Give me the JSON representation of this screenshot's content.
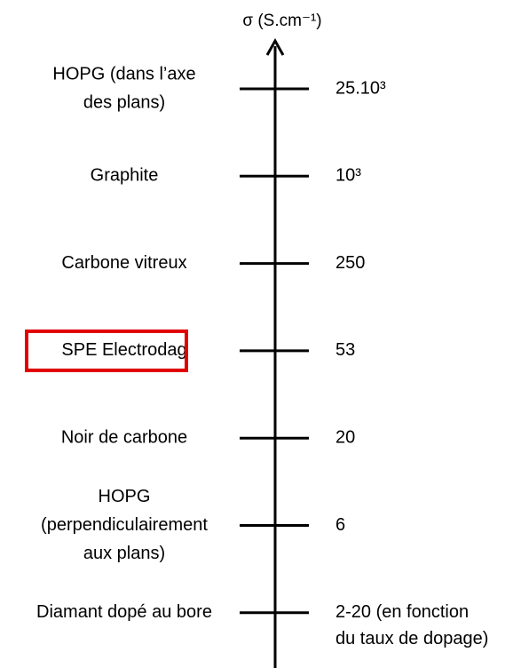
{
  "axis_label": "σ (S.cm⁻¹)",
  "items": [
    {
      "label": [
        "HOPG (dans l’axe",
        "des plans)"
      ],
      "value": [
        "25.10³"
      ]
    },
    {
      "label": [
        "Graphite"
      ],
      "value": [
        "10³"
      ]
    },
    {
      "label": [
        "Carbone vitreux"
      ],
      "value": [
        "250"
      ]
    },
    {
      "label": [
        "SPE Electrodag"
      ],
      "value": [
        "53"
      ],
      "highlighted": true
    },
    {
      "label": [
        "Noir de carbone"
      ],
      "value": [
        "20"
      ]
    },
    {
      "label": [
        "HOPG",
        "(perpendiculairement",
        "aux plans)"
      ],
      "value": [
        "6"
      ]
    },
    {
      "label": [
        "Diamant dopé au bore"
      ],
      "value": [
        "2-20 (en fonction",
        "du taux de dopage)"
      ]
    }
  ]
}
